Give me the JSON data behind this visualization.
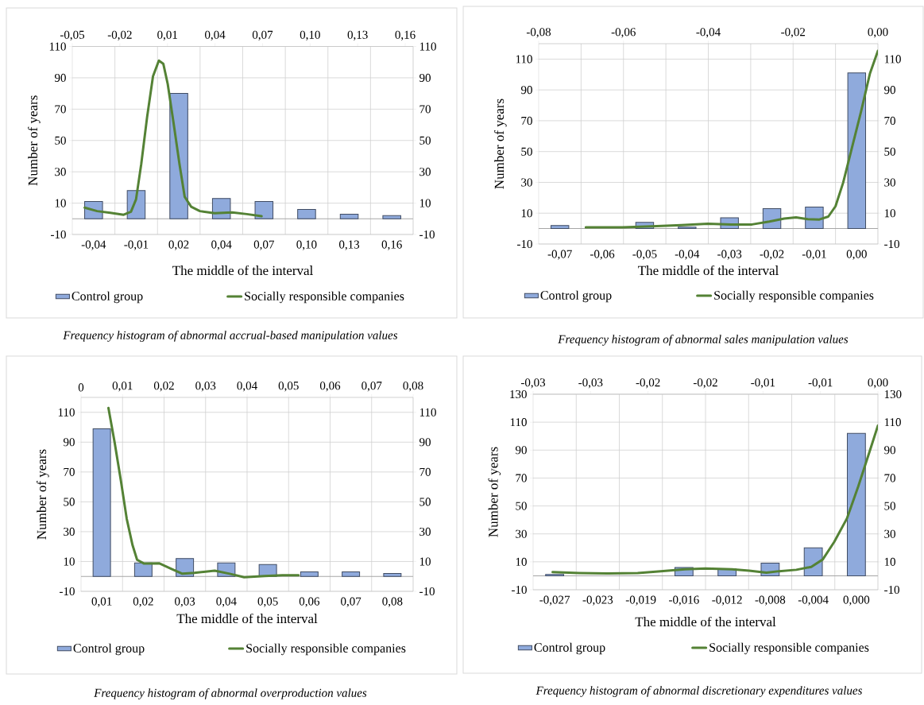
{
  "chart_data": [
    {
      "type": "bar",
      "annotations": [
        "Frequency histogram of abnormal accrual-based manipulation values"
      ],
      "xlabel": "The middle of the interval",
      "ylabel": "Number of years",
      "categories": [
        "-0,04",
        "-0,01",
        "0,02",
        "0,04",
        "0,07",
        "0,10",
        "0,13",
        "0,16"
      ],
      "series": [
        {
          "name": "Control group",
          "color": "#8faadc",
          "values": [
            11,
            18,
            80,
            13,
            11,
            6,
            3,
            2
          ]
        }
      ],
      "ylim": [
        -10,
        110
      ],
      "yticks": [
        -10,
        10,
        30,
        50,
        70,
        90,
        110
      ],
      "grid": true,
      "legend": "bottom"
    },
    {
      "type": "line",
      "x": [
        -0.0422,
        -0.0343,
        -0.026,
        -0.0176,
        -0.013,
        -0.0098,
        -0.0065,
        -0.0028,
        0.0009,
        0.0046,
        0.0074,
        0.0102,
        0.0139,
        0.0176,
        0.0209,
        0.025,
        0.0305,
        0.0398,
        0.0509,
        0.0601,
        0.0694
      ],
      "series": [
        {
          "name": "Socially responsible companies",
          "color": "#548235",
          "values": [
            7.1,
            4.9,
            3.8,
            2.6,
            4.5,
            12.4,
            35,
            65,
            91,
            101,
            99,
            86,
            61,
            35,
            14,
            7.7,
            4.9,
            3.6,
            4.1,
            3,
            1.7
          ]
        }
      ],
      "ylim": [
        -10,
        110
      ],
      "yticks": [
        -10,
        10,
        30,
        50,
        70,
        90,
        110
      ],
      "xlim": [
        -0.05,
        0.165
      ],
      "xticks": [
        {
          "value": -0.05,
          "label": "-0,05"
        },
        {
          "value": -0.02,
          "label": "-0,02"
        },
        {
          "value": 0.01,
          "label": "0,01"
        },
        {
          "value": 0.04,
          "label": "0,04"
        },
        {
          "value": 0.07,
          "label": "0,07"
        },
        {
          "value": 0.1,
          "label": "0,10"
        },
        {
          "value": 0.13,
          "label": "0,13"
        },
        {
          "value": 0.16,
          "label": "0,16"
        }
      ],
      "legend": "bottom"
    },
    {
      "type": "bar",
      "annotations": [
        "Frequency histogram of abnormal sales manipulation values"
      ],
      "xlabel": "The middle of the interval",
      "ylabel": "Number of years",
      "categories": [
        "-0,07",
        "-0,06",
        "-0,05",
        "-0,04",
        "-0,03",
        "-0,02",
        "-0,01",
        "0,00"
      ],
      "series": [
        {
          "name": "Control group",
          "color": "#8faadc",
          "values": [
            2,
            0,
            4,
            1,
            7,
            13,
            14,
            101
          ]
        }
      ],
      "ylim": [
        -10,
        120
      ],
      "yticks": [
        -10,
        10,
        30,
        50,
        70,
        90,
        110
      ],
      "grid": true,
      "legend": "bottom"
    },
    {
      "type": "line",
      "x": [
        -0.0689,
        -0.0602,
        -0.0533,
        -0.0464,
        -0.0401,
        -0.0346,
        -0.0297,
        -0.0256,
        -0.0221,
        -0.0193,
        -0.0166,
        -0.0138,
        -0.0117,
        -0.01,
        -0.0082,
        -0.0061,
        -0.004,
        -0.0019,
        0.0
      ],
      "series": [
        {
          "name": "Socially responsible companies",
          "color": "#548235",
          "values": [
            0.8,
            0.8,
            1.5,
            2.3,
            3.1,
            2.7,
            2.7,
            4.6,
            6.5,
            7.3,
            6.1,
            5.9,
            7.8,
            14.5,
            29.8,
            52.7,
            75.7,
            100.5,
            115.4
          ]
        }
      ],
      "ylim": [
        -10,
        120
      ],
      "yticks": [
        -10,
        10,
        30,
        50,
        70,
        90,
        110
      ],
      "xlim": [
        -0.08,
        0.0
      ],
      "xticks": [
        {
          "value": -0.08,
          "label": "-0,08"
        },
        {
          "value": -0.06,
          "label": "-0,06"
        },
        {
          "value": -0.04,
          "label": "-0,04"
        },
        {
          "value": -0.02,
          "label": "-0,02"
        },
        {
          "value": 0.0,
          "label": "0,00"
        }
      ],
      "legend": "bottom"
    },
    {
      "type": "bar",
      "annotations": [
        "Frequency histogram of abnormal overproduction values"
      ],
      "xlabel": "The middle of the interval",
      "ylabel": "Number of years",
      "categories": [
        "0,01",
        "0,02",
        "0,03",
        "0,04",
        "0,05",
        "0,06",
        "0,07",
        "0,08"
      ],
      "series": [
        {
          "name": "Control group",
          "color": "#8faadc",
          "values": [
            99,
            9,
            12,
            9,
            8,
            3,
            3,
            2
          ]
        }
      ],
      "ylim": [
        -10,
        120
      ],
      "yticks": [
        -10,
        10,
        30,
        50,
        70,
        90,
        110
      ],
      "grid": true,
      "legend": "bottom"
    },
    {
      "type": "line",
      "x": [
        0.0066,
        0.0081,
        0.0096,
        0.011,
        0.0124,
        0.0135,
        0.0152,
        0.0188,
        0.0216,
        0.0244,
        0.0273,
        0.0322,
        0.0358,
        0.0393,
        0.0442,
        0.0485,
        0.0524
      ],
      "series": [
        {
          "name": "Socially responsible companies",
          "color": "#548235",
          "values": [
            112.9,
            89.7,
            64.2,
            38.7,
            21,
            11.2,
            8.6,
            8.8,
            5.3,
            1.8,
            2.4,
            3.9,
            1.8,
            -0.5,
            0.2,
            0.8,
            0.8
          ]
        }
      ],
      "ylim": [
        -10,
        120
      ],
      "yticks": [
        -10,
        10,
        30,
        50,
        70,
        90,
        110
      ],
      "xlim": [
        0,
        0.08
      ],
      "xticks": [
        0,
        {
          "value": 0.01,
          "label": "0,01"
        },
        {
          "value": 0.02,
          "label": "0,02"
        },
        {
          "value": 0.03,
          "label": "0,03"
        },
        {
          "value": 0.04,
          "label": "0,04"
        },
        {
          "value": 0.05,
          "label": "0,05"
        },
        {
          "value": 0.06,
          "label": "0,06"
        },
        {
          "value": 0.07,
          "label": "0,07"
        },
        {
          "value": 0.08,
          "label": "0,08"
        }
      ],
      "legend": "bottom"
    },
    {
      "type": "bar",
      "annotations": [
        "Frequency histogram of abnormal discretionary expenditures values"
      ],
      "xlabel": "The middle of the interval",
      "ylabel": "Number of years",
      "categories": [
        "-0,027",
        "-0,023",
        "-0,019",
        "-0,016",
        "-0,012",
        "-0,008",
        "-0,004",
        "0,000"
      ],
      "series": [
        {
          "name": "Control group",
          "color": "#8faadc",
          "values": [
            1,
            0,
            0,
            6,
            5,
            9,
            20,
            102
          ]
        }
      ],
      "ylim": [
        -10,
        130
      ],
      "yticks": [
        -10,
        10,
        30,
        50,
        70,
        90,
        110,
        130
      ],
      "grid": true,
      "legend": "bottom"
    },
    {
      "type": "line",
      "x": [
        -0.0283,
        -0.026,
        -0.0235,
        -0.0209,
        -0.0189,
        -0.0168,
        -0.015,
        -0.0127,
        -0.0112,
        -0.0097,
        -0.0086,
        -0.0071,
        -0.0058,
        -0.0048,
        -0.0038,
        -0.0027,
        -0.0017,
        -0.0007,
        0.0
      ],
      "series": [
        {
          "name": "Socially responsible companies",
          "color": "#548235",
          "values": [
            2.6,
            2,
            1.6,
            2,
            3.3,
            4.7,
            5.2,
            4.7,
            3.7,
            2.2,
            3.3,
            4.3,
            6.4,
            11.7,
            24.3,
            41,
            64.3,
            89.6,
            107.5
          ]
        }
      ],
      "ylim": [
        -10,
        130
      ],
      "yticks": [
        -10,
        10,
        30,
        50,
        70,
        90,
        110,
        130
      ],
      "xlim": [
        -0.03,
        0.0
      ],
      "xticks": [
        {
          "value": -0.03,
          "label": "-0,03"
        },
        {
          "value": -0.025,
          "label": "-0,03"
        },
        {
          "value": -0.02,
          "label": "-0,02"
        },
        {
          "value": -0.015,
          "label": "-0,02"
        },
        {
          "value": -0.01,
          "label": "-0,01"
        },
        {
          "value": -0.005,
          "label": "-0,01"
        },
        {
          "value": 0.0,
          "label": "0,00"
        }
      ],
      "legend": "bottom"
    }
  ]
}
